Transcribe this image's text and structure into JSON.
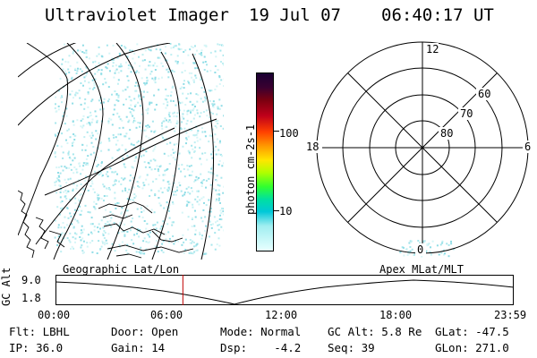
{
  "header": {
    "instrument": "Ultraviolet Imager",
    "date": "19 Jul 07",
    "time": "06:40:17 UT"
  },
  "colorbar": {
    "label": "photon cm-2s-1",
    "ticks": [
      "100",
      "10"
    ],
    "scale": "log"
  },
  "polar": {
    "mlt_labels": {
      "top": "12",
      "right": "6",
      "bottom": "0",
      "left": "18"
    },
    "lat_labels": [
      "60",
      "70",
      "80"
    ]
  },
  "orbit": {
    "left_label": "Geographic Lat/Lon",
    "right_label": "Apex MLat/MLT",
    "axis_label": "GC Alt",
    "y_ticks": [
      "9.0",
      "1.8"
    ],
    "x_ticks": [
      "00:00",
      "06:00",
      "12:00",
      "18:00",
      "23:59"
    ],
    "current_time_fraction": 0.278,
    "marker_color": "#c00000"
  },
  "info": {
    "row1": {
      "filter": "Flt: LBHL",
      "door": "Door: Open",
      "mode": "Mode: Normal",
      "gcalt": "GC Alt: 5.8 Re",
      "glat": "GLat: -47.5"
    },
    "row2": {
      "ip": "IP: 36.0",
      "gain": "Gain: 14",
      "dsp": "Dsp:    -4.2",
      "seq": "Seq: 39",
      "glon": "GLon: 271.0"
    }
  }
}
